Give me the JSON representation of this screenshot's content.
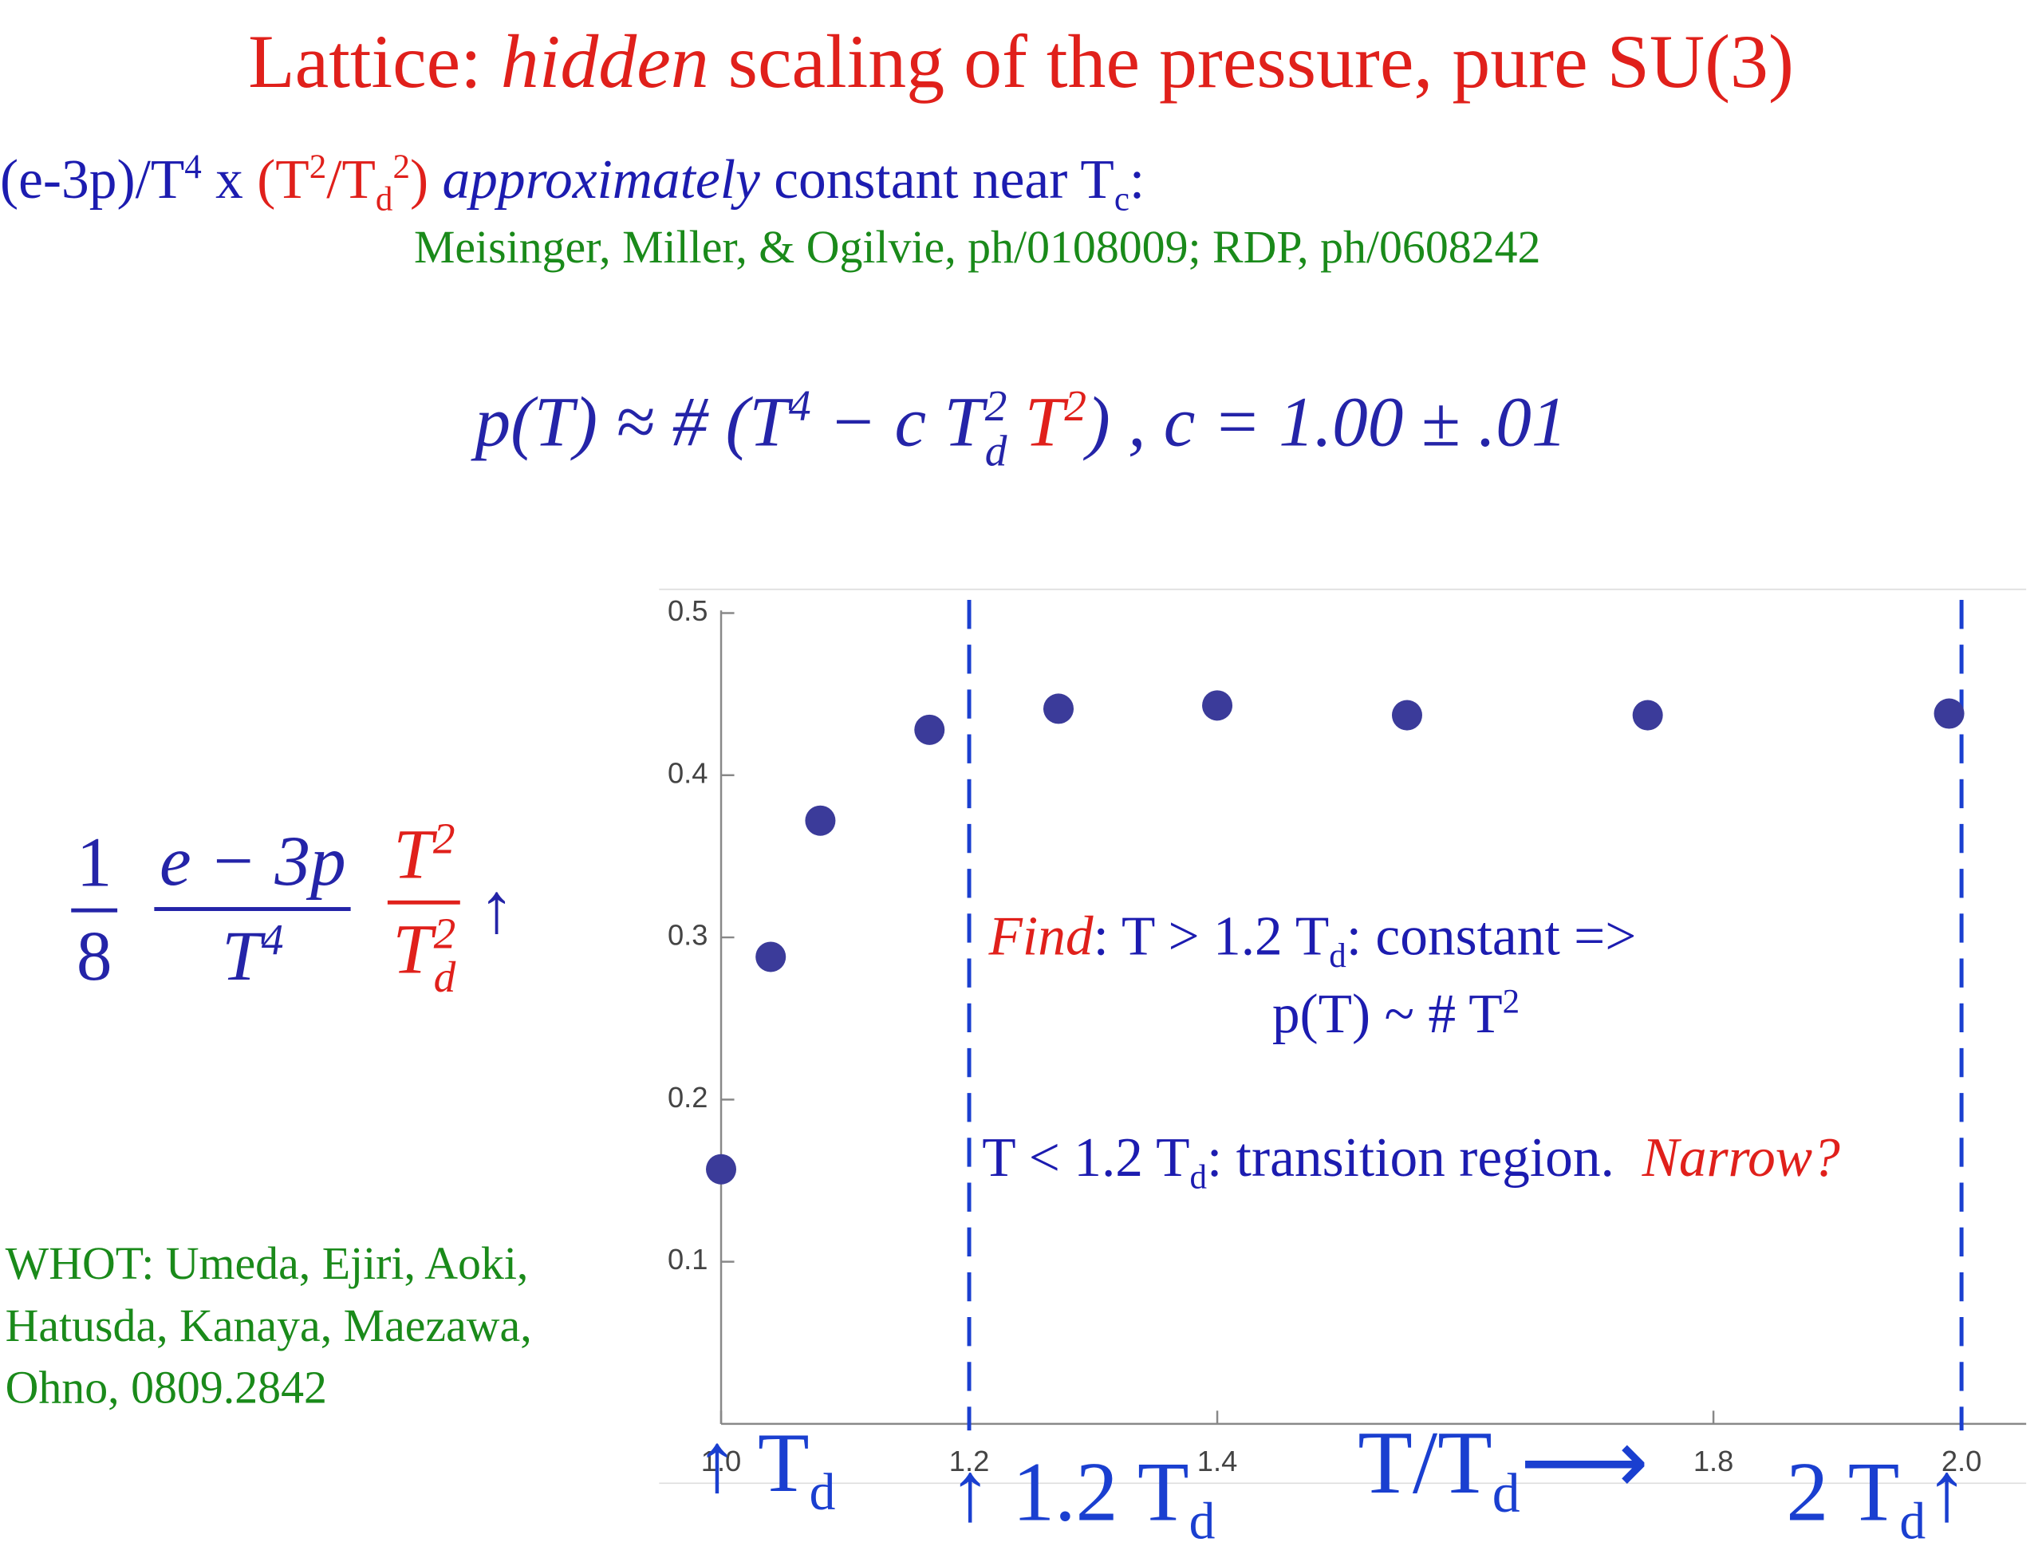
{
  "title": [
    "Lattice: ",
    "hidden",
    " scaling of the pressure, pure SU(3)"
  ],
  "subtitle": [
    "(e-3p)/T",
    "4",
    " x ",
    "(T",
    "2",
    "/T",
    "d",
    "2",
    ")",
    " approximately",
    " constant near T",
    "c",
    ":"
  ],
  "reference": "Meisinger, Miller, & Ogilvie, ph/0108009; RDP, ph/0608242",
  "formula": [
    "p(T) ≈ # (T",
    "4",
    " − c T",
    "2",
    "d",
    " T",
    "2",
    ")",
    " , c = 1.00 ± .01"
  ],
  "ylabel": [
    "1",
    "8",
    "e − 3p",
    "T",
    "4",
    "T",
    "2",
    "T",
    "2",
    "d",
    "↑"
  ],
  "credit": [
    "WHOT: Umeda, Ejiri, Aoki,",
    "Hatusda, Kanaya, Maezawa,",
    "Ohno, 0809.2842"
  ],
  "annotation": [
    [
      "Find",
      ": T > 1.2 T",
      "d",
      ": constant =>"
    ],
    [
      "p(T) ~ # T",
      "2"
    ],
    [
      "T < 1.2 T",
      "d",
      ": transition region.  ",
      "Narrow?"
    ]
  ],
  "arrows": [
    "↑ T",
    "d",
    "↑ 1.2 T",
    "d",
    "2 T",
    "d",
    "↑"
  ],
  "xlabel": [
    "T/T",
    "d",
    "⟶"
  ],
  "chart_data": {
    "type": "scatter",
    "x": [
      1.0,
      1.04,
      1.08,
      1.168,
      1.272,
      1.4,
      1.553,
      1.747,
      1.99
    ],
    "values": [
      0.157,
      0.288,
      0.372,
      0.428,
      0.441,
      0.443,
      0.437,
      0.437,
      0.438
    ],
    "color": "#3b3b9a",
    "xlim": [
      1.0,
      2.05
    ],
    "ylim": [
      0,
      0.5
    ],
    "xticks": [
      {
        "value": 1,
        "label": "1.0"
      },
      1.2,
      1.4,
      1.8,
      {
        "value": 2,
        "label": "2.0"
      }
    ],
    "yticks": [
      0.1,
      0.2,
      0.3,
      0.4,
      0.5
    ],
    "vlines": [
      1.2,
      2.0
    ],
    "vline_color": "#1a3fd0"
  }
}
